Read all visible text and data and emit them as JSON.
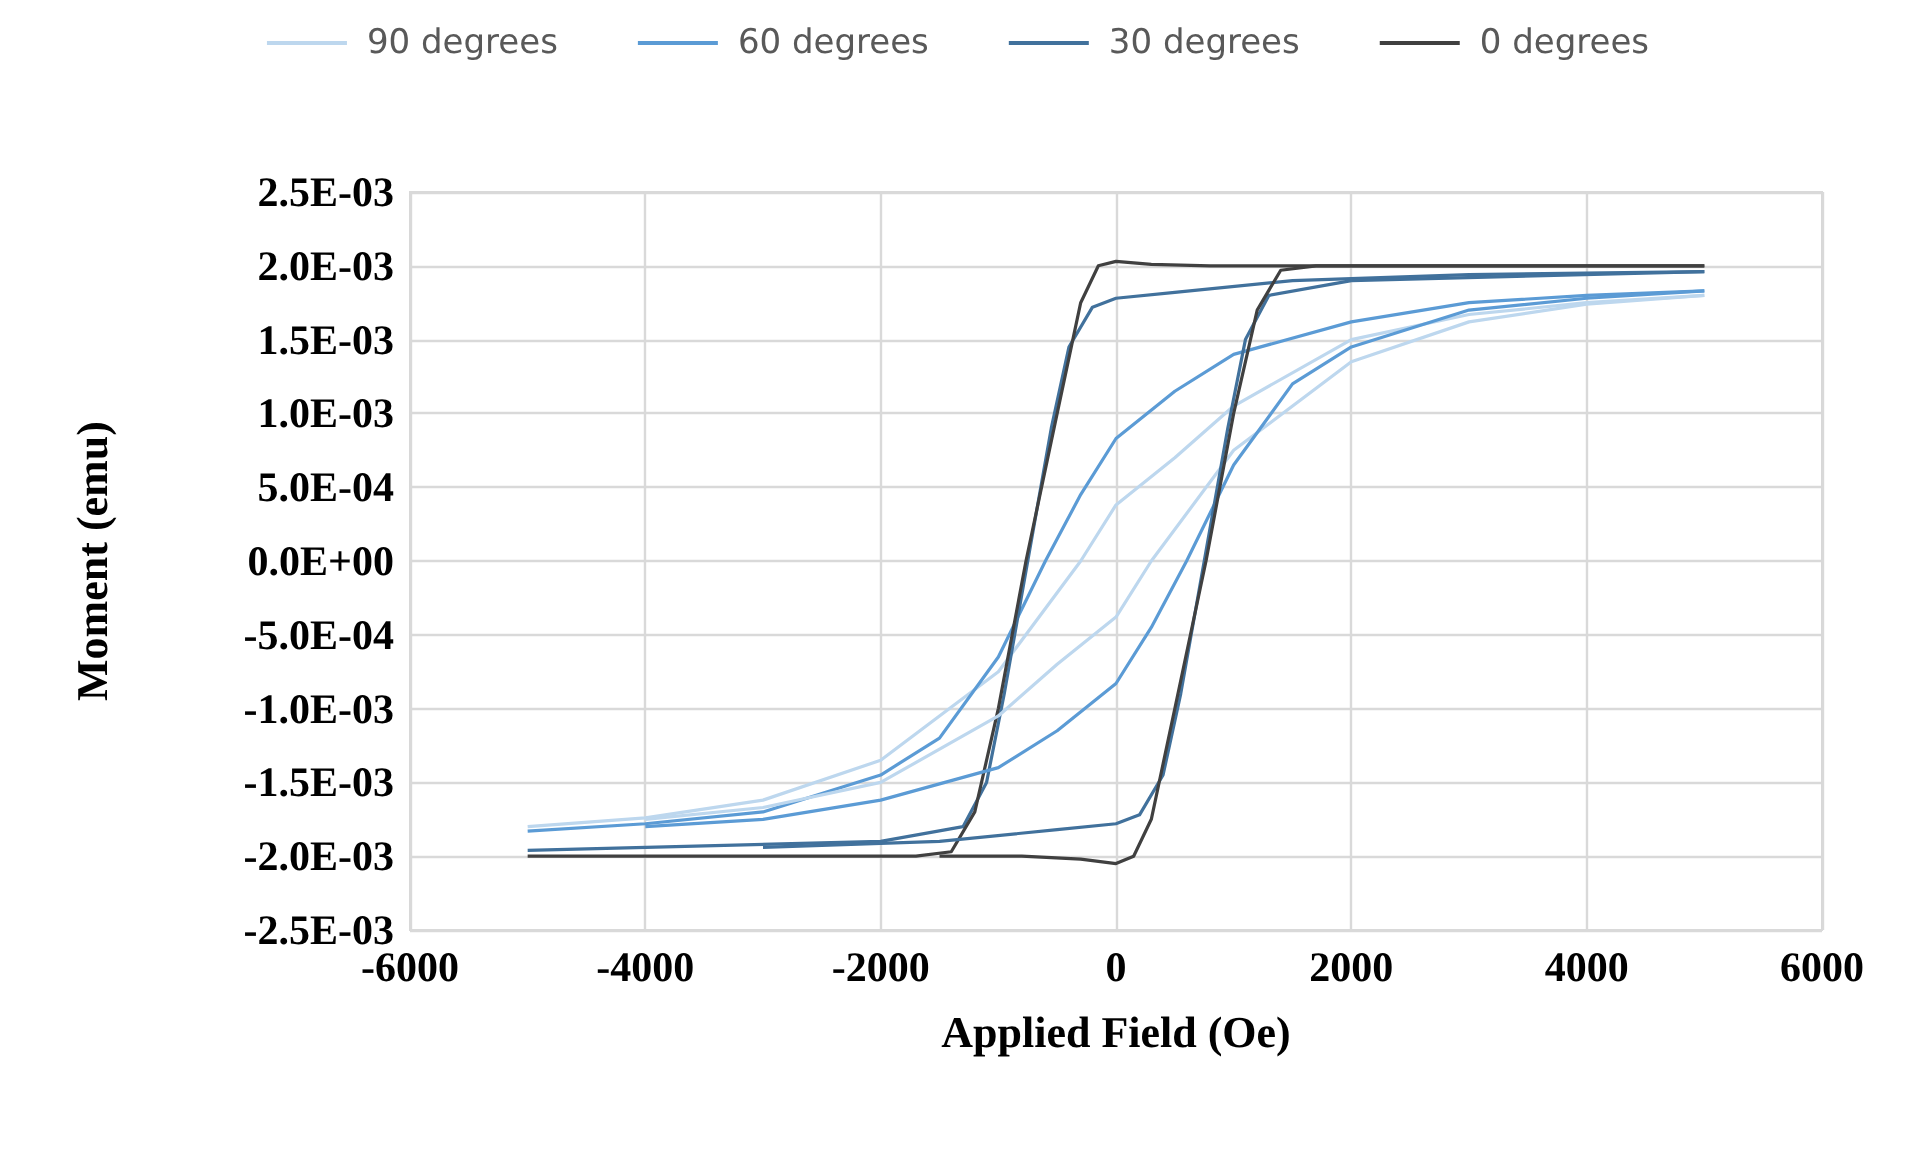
{
  "chart_data": {
    "type": "line",
    "xlabel": "Applied Field (Oe)",
    "ylabel": "Moment (emu)",
    "legend": "top",
    "grid": true,
    "marker": "none",
    "line_style": "solid",
    "xlim": [
      -6000,
      6000
    ],
    "xticks": [
      -6000,
      -4000,
      -2000,
      0,
      2000,
      4000,
      6000
    ],
    "ylim": [
      -0.0025,
      0.0025
    ],
    "yticks": [
      {
        "value": -0.0025,
        "label": "-2.5E-03"
      },
      {
        "value": -0.002,
        "label": "-2.0E-03"
      },
      {
        "value": -0.0015,
        "label": "-1.5E-03"
      },
      {
        "value": -0.001,
        "label": "-1.0E-03"
      },
      {
        "value": -0.0005,
        "label": "-5.0E-04"
      },
      {
        "value": 0,
        "label": "0.0E+00"
      },
      {
        "value": 0.0005,
        "label": "5.0E-04"
      },
      {
        "value": 0.001,
        "label": "1.0E-03"
      },
      {
        "value": 0.0015,
        "label": "1.5E-03"
      },
      {
        "value": 0.002,
        "label": "2.0E-03"
      },
      {
        "value": 0.0025,
        "label": "2.5E-03"
      }
    ],
    "series": [
      {
        "name": "90 degrees",
        "color": "#bdd7ee",
        "x": [
          -5000,
          -4000,
          -3000,
          -2000,
          -1000,
          -300,
          0,
          500,
          1000,
          2000,
          3000,
          4000,
          5000
        ],
        "values": [
          -0.0018,
          -0.00174,
          -0.00162,
          -0.00135,
          -0.00075,
          0,
          0.00038,
          0.0007,
          0.00105,
          0.0015,
          0.00167,
          0.00175,
          0.0018
        ]
      },
      {
        "name": "60 degrees",
        "color": "#5b9bd5",
        "x": [
          -5000,
          -4000,
          -3000,
          -2000,
          -1500,
          -1000,
          -600,
          -300,
          0,
          500,
          1000,
          2000,
          3000,
          4000,
          5000
        ],
        "values": [
          -0.00183,
          -0.00178,
          -0.0017,
          -0.00145,
          -0.0012,
          -0.00065,
          0,
          0.00045,
          0.00083,
          0.00115,
          0.0014,
          0.00162,
          0.00175,
          0.0018,
          0.00183
        ]
      },
      {
        "name": "30 degrees",
        "color": "#41719c",
        "x": [
          -5000,
          -2000,
          -1300,
          -1100,
          -950,
          -750,
          -550,
          -400,
          -200,
          0,
          500,
          1500,
          3000,
          5000
        ],
        "values": [
          -0.00196,
          -0.0019,
          -0.0018,
          -0.0015,
          -0.0009,
          0,
          0.0009,
          0.00145,
          0.00172,
          0.00178,
          0.00182,
          0.0019,
          0.00194,
          0.00196
        ]
      },
      {
        "name": "0 degrees",
        "color": "#404040",
        "x": [
          -5000,
          -1700,
          -1400,
          -1200,
          -1000,
          -765,
          -500,
          -300,
          -150,
          0,
          300,
          800,
          1500,
          3000,
          5000
        ],
        "values": [
          -0.002,
          -0.002,
          -0.00197,
          -0.0017,
          -0.001,
          0,
          0.001,
          0.00175,
          0.002,
          0.00203,
          0.00201,
          0.002,
          0.002,
          0.002,
          0.002
        ]
      },
      {
        "color": "#bdd7ee",
        "x": [
          -4000,
          -3000,
          -2000,
          -1000,
          -500,
          0,
          300,
          1000,
          2000,
          3000,
          4000,
          5000
        ],
        "values": [
          -0.00175,
          -0.00167,
          -0.0015,
          -0.00105,
          -0.0007,
          -0.00038,
          0,
          0.00075,
          0.00135,
          0.00162,
          0.00174,
          0.0018
        ]
      },
      {
        "color": "#5b9bd5",
        "x": [
          -4000,
          -3000,
          -2000,
          -1000,
          -500,
          0,
          300,
          600,
          1000,
          1500,
          2000,
          3000,
          4000,
          5000
        ],
        "values": [
          -0.0018,
          -0.00175,
          -0.00162,
          -0.0014,
          -0.00115,
          -0.00083,
          -0.00045,
          0,
          0.00065,
          0.0012,
          0.00145,
          0.0017,
          0.00178,
          0.00183
        ]
      },
      {
        "color": "#41719c",
        "x": [
          -3000,
          -1500,
          -500,
          0,
          200,
          400,
          550,
          750,
          950,
          1100,
          1300,
          2000,
          5000
        ],
        "values": [
          -0.00194,
          -0.0019,
          -0.00182,
          -0.00178,
          -0.00172,
          -0.00145,
          -0.0009,
          0,
          0.0009,
          0.0015,
          0.0018,
          0.0019,
          0.00196
        ]
      },
      {
        "color": "#404040",
        "x": [
          -1500,
          -800,
          -300,
          0,
          150,
          300,
          500,
          765,
          1000,
          1200,
          1400,
          1700,
          5000
        ],
        "values": [
          -0.002,
          -0.002,
          -0.00202,
          -0.00205,
          -0.002,
          -0.00175,
          -0.001,
          0,
          0.001,
          0.0017,
          0.00197,
          0.002,
          0.002
        ]
      }
    ]
  }
}
